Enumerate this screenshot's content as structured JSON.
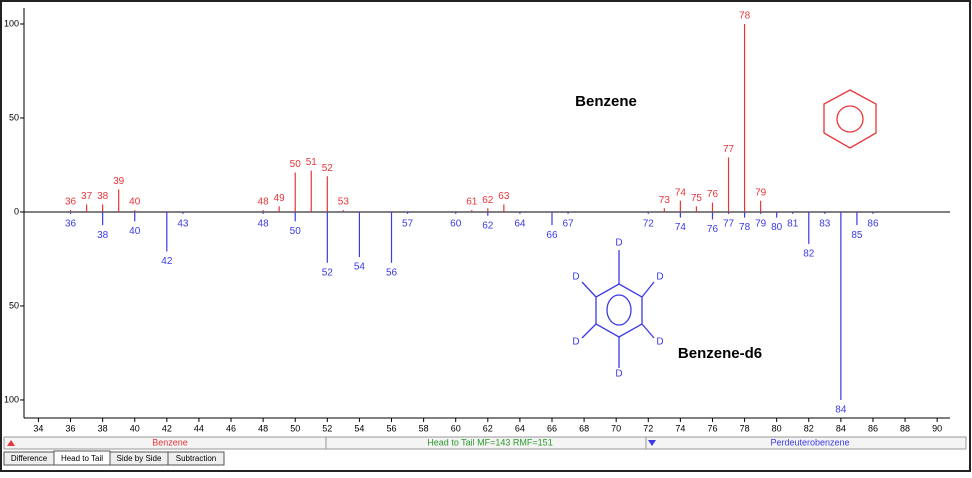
{
  "chart_data": {
    "type": "head_to_tail",
    "xlim": [
      33.1,
      90.8
    ],
    "xticks": [
      34,
      36,
      38,
      40,
      42,
      44,
      46,
      48,
      50,
      52,
      54,
      56,
      58,
      60,
      62,
      64,
      66,
      68,
      70,
      72,
      74,
      76,
      78,
      80,
      82,
      84,
      86,
      88,
      90
    ],
    "ylim": [
      -109.6,
      108.5
    ],
    "yticks": [
      100,
      50,
      0,
      {
        "value": -50,
        "label": "50"
      },
      {
        "value": -100,
        "label": "100"
      }
    ],
    "series": [
      {
        "name": "Benzene",
        "color": "#e8353a",
        "x": [
          36,
          37,
          38,
          39,
          40,
          48,
          49,
          50,
          51,
          52,
          53,
          61,
          62,
          63,
          73,
          74,
          75,
          76,
          77,
          78,
          79
        ],
        "values": [
          1,
          4,
          4,
          12,
          1,
          1,
          3,
          21,
          22,
          19,
          1,
          1,
          2,
          4,
          2,
          6,
          3,
          5,
          29,
          100,
          6
        ]
      },
      {
        "name": "Perdeuterobenzene",
        "color": "#3a3ae8",
        "x": [
          36,
          38,
          40,
          42,
          43,
          48,
          50,
          52,
          54,
          56,
          57,
          60,
          62,
          64,
          66,
          67,
          72,
          74,
          76,
          77,
          78,
          79,
          80,
          81,
          82,
          83,
          84,
          85,
          86
        ],
        "values": [
          -1,
          -7,
          -5,
          -21,
          -1,
          -1,
          -5,
          -27,
          -24,
          -27,
          -1,
          -1,
          -2,
          -1,
          -7,
          -1,
          -1,
          -3,
          -4,
          -1,
          -3,
          -1,
          -3,
          -1,
          -17,
          -1,
          -100,
          -7,
          -1
        ]
      }
    ],
    "annotations": [
      "Benzene",
      "Benzene-d6"
    ],
    "molecule_labels": [
      "D",
      "D",
      "D",
      "D",
      "D",
      "D"
    ],
    "status": "Head to Tail MF=143 RMF=151",
    "tabs": [
      "Difference",
      "Head to Tail",
      "Side by Side",
      "Subtraction"
    ]
  }
}
